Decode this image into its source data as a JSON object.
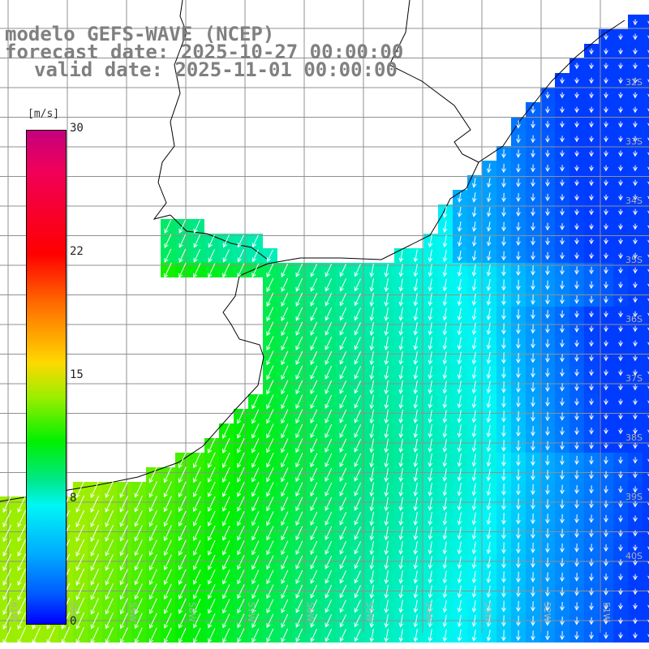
{
  "header": {
    "line1": "modelo GEFS-WAVE (NCEP)",
    "line2": "forecast date: 2025-10-27 00:00:00",
    "line3": "valid date: 2025-11-01 00:00:00"
  },
  "colorbar": {
    "unit": "[m/s]",
    "ticks": [
      "30",
      "22",
      "15",
      "8",
      "0"
    ],
    "palette": [
      "#c4007e",
      "#ff0000",
      "#ff6a00",
      "#ffd800",
      "#00f000",
      "#00f6f6",
      "#00aaff",
      "#0000ff"
    ]
  },
  "map": {
    "lat_labels": [
      "32S",
      "33S",
      "34S",
      "35S",
      "36S",
      "37S",
      "38S",
      "39S",
      "40S"
    ],
    "lon_labels": [
      "61W",
      "60W",
      "59W",
      "58W",
      "57W",
      "56W",
      "55W",
      "54W",
      "53W",
      "52W",
      "51W"
    ],
    "variable": "wind",
    "colors": {
      "land": "#ffffff",
      "coast": "#000000",
      "grid": "#909090",
      "label": "#b0b0b0",
      "arrow": "#ffffff"
    }
  }
}
